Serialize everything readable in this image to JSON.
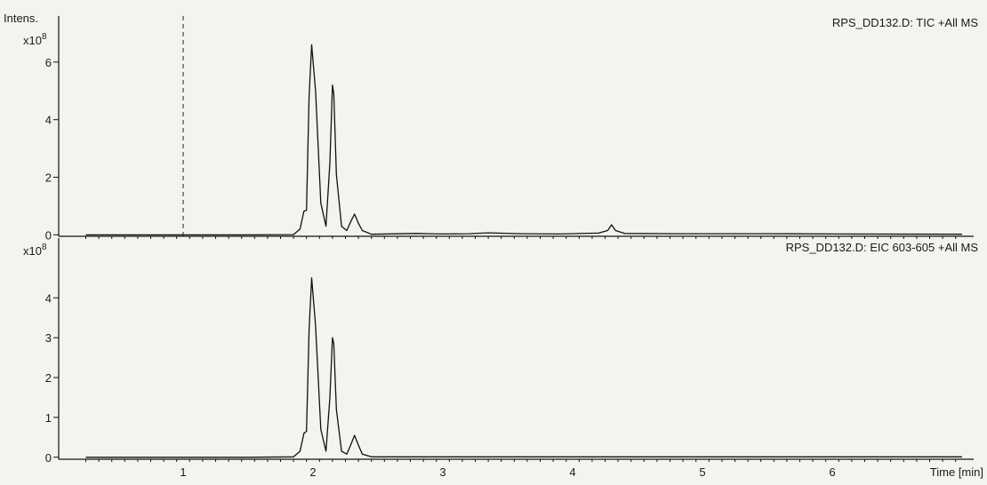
{
  "chart_data": [
    {
      "type": "line",
      "title": "RPS_DD132.D: TIC +All MS",
      "ylabel": "Intens.",
      "yexp": "x10",
      "yexp_sup": "8",
      "xlabel": "",
      "xlim": [
        0.25,
        7.0
      ],
      "ylim": [
        -0.05,
        7.6
      ],
      "yticks": [
        0,
        2,
        4,
        6
      ],
      "grid": false,
      "marker_x": 1.0,
      "series": [
        {
          "x": [
            0.25,
            1.0,
            1.5,
            1.85,
            1.9,
            1.93,
            1.95,
            1.97,
            1.99,
            2.02,
            2.06,
            2.1,
            2.13,
            2.15,
            2.16,
            2.18,
            2.22,
            2.26,
            2.29,
            2.32,
            2.35,
            2.38,
            2.45,
            2.8,
            2.9,
            3.0,
            3.2,
            3.35,
            3.6,
            3.9,
            4.2,
            4.27,
            4.3,
            4.33,
            4.4,
            4.8,
            5.5,
            6.0,
            7.0
          ],
          "y": [
            0.0,
            0.0,
            0.0,
            0.01,
            0.2,
            0.82,
            0.85,
            4.8,
            6.6,
            5.0,
            1.1,
            0.3,
            2.5,
            5.2,
            4.9,
            2.1,
            0.3,
            0.15,
            0.45,
            0.72,
            0.4,
            0.15,
            0.02,
            0.05,
            0.04,
            0.03,
            0.04,
            0.07,
            0.04,
            0.03,
            0.06,
            0.15,
            0.35,
            0.15,
            0.05,
            0.04,
            0.04,
            0.03,
            0.02
          ]
        }
      ]
    },
    {
      "type": "line",
      "title": "RPS_DD132.D: EIC 603-605 +All MS",
      "ylabel": "",
      "yexp": "x10",
      "yexp_sup": "8",
      "xlabel": "Time [min]",
      "xlim": [
        0.25,
        7.0
      ],
      "ylim": [
        -0.05,
        5.5
      ],
      "yticks": [
        0,
        1,
        2,
        3,
        4
      ],
      "xticks": [
        1,
        2,
        3,
        4,
        5,
        6
      ],
      "grid": false,
      "series": [
        {
          "x": [
            0.25,
            1.0,
            1.5,
            1.85,
            1.9,
            1.93,
            1.95,
            1.97,
            1.99,
            2.02,
            2.06,
            2.1,
            2.13,
            2.15,
            2.16,
            2.18,
            2.22,
            2.26,
            2.29,
            2.32,
            2.35,
            2.38,
            2.45,
            3.0,
            4.0,
            5.0,
            6.0,
            7.0
          ],
          "y": [
            0.0,
            0.0,
            0.0,
            0.01,
            0.15,
            0.6,
            0.65,
            3.2,
            4.5,
            3.3,
            0.7,
            0.15,
            1.5,
            3.0,
            2.85,
            1.2,
            0.15,
            0.08,
            0.3,
            0.55,
            0.3,
            0.08,
            0.01,
            0.01,
            0.01,
            0.01,
            0.01,
            0.01
          ]
        }
      ]
    }
  ]
}
